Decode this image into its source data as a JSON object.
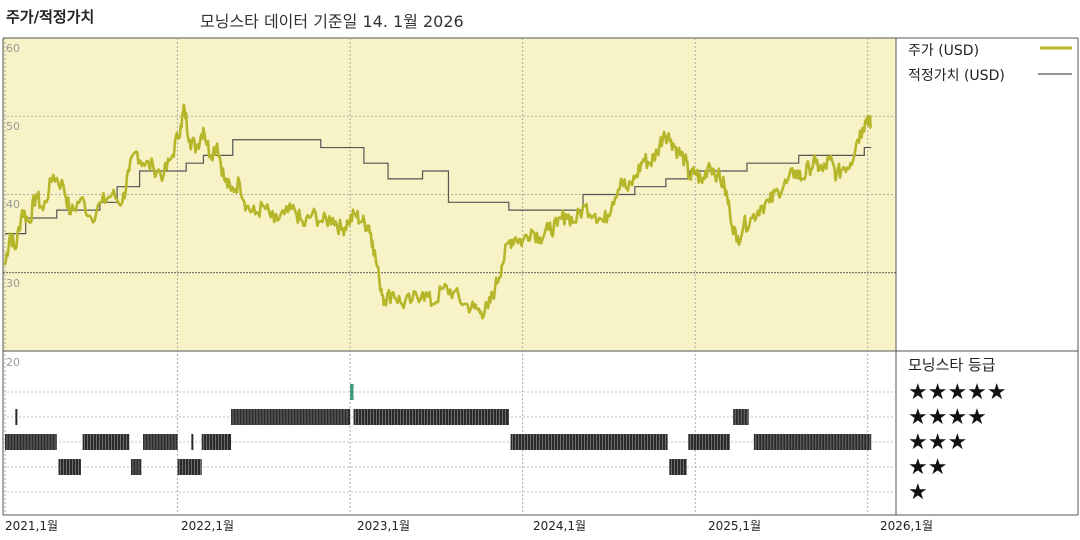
{
  "header": {
    "title": "주가/적정가치",
    "subtitle": "모닝스타 데이터 기준일 14. 1월 2026"
  },
  "colors": {
    "price": "#b6b62a",
    "fair": "#555555",
    "panel_bg": "#f7f3c7",
    "one_star_bar": "#3d9a72"
  },
  "chart_data": [
    {
      "type": "line",
      "y_ticks": [
        "60",
        "50",
        "40",
        "30"
      ],
      "ylim": [
        20,
        60
      ],
      "xlim": [
        2021.0,
        2026.1
      ],
      "x_tick_labels": [
        "2021,1월",
        "2022,1월",
        "2023,1월",
        "2024,1월",
        "2025,1월",
        "2026,1월"
      ],
      "x_tick_values": [
        2021.0,
        2022.0,
        2023.0,
        2024.0,
        2025.0,
        2026.0
      ],
      "legend": "right",
      "series": [
        {
          "name": "주가 (USD)",
          "style": "solid-thick",
          "points": [
            [
              2021.0,
              31.0
            ],
            [
              2021.03,
              35.0
            ],
            [
              2021.06,
              33.0
            ],
            [
              2021.1,
              38.0
            ],
            [
              2021.14,
              36.5
            ],
            [
              2021.18,
              40.0
            ],
            [
              2021.22,
              38.0
            ],
            [
              2021.28,
              42.5
            ],
            [
              2021.34,
              41.0
            ],
            [
              2021.38,
              37.5
            ],
            [
              2021.44,
              39.5
            ],
            [
              2021.5,
              37.0
            ],
            [
              2021.56,
              39.0
            ],
            [
              2021.62,
              40.0
            ],
            [
              2021.68,
              39.0
            ],
            [
              2021.72,
              43.0
            ],
            [
              2021.76,
              45.5
            ],
            [
              2021.8,
              44.0
            ],
            [
              2021.86,
              43.5
            ],
            [
              2021.92,
              42.5
            ],
            [
              2021.97,
              45.0
            ],
            [
              2022.02,
              49.0
            ],
            [
              2022.04,
              51.0
            ],
            [
              2022.07,
              47.0
            ],
            [
              2022.11,
              46.0
            ],
            [
              2022.15,
              48.5
            ],
            [
              2022.19,
              45.0
            ],
            [
              2022.23,
              46.5
            ],
            [
              2022.27,
              42.0
            ],
            [
              2022.31,
              40.5
            ],
            [
              2022.36,
              41.5
            ],
            [
              2022.4,
              38.5
            ],
            [
              2022.45,
              37.5
            ],
            [
              2022.5,
              38.5
            ],
            [
              2022.56,
              36.5
            ],
            [
              2022.62,
              37.5
            ],
            [
              2022.68,
              38.0
            ],
            [
              2022.73,
              36.0
            ],
            [
              2022.78,
              37.5
            ],
            [
              2022.84,
              36.5
            ],
            [
              2022.9,
              37.0
            ],
            [
              2022.95,
              35.5
            ],
            [
              2022.99,
              36.5
            ],
            [
              2023.03,
              37.5
            ],
            [
              2023.07,
              36.5
            ],
            [
              2023.11,
              36.0
            ],
            [
              2023.13,
              34.0
            ],
            [
              2023.17,
              29.0
            ],
            [
              2023.2,
              26.5
            ],
            [
              2023.25,
              27.5
            ],
            [
              2023.3,
              26.0
            ],
            [
              2023.36,
              26.5
            ],
            [
              2023.42,
              27.5
            ],
            [
              2023.48,
              26.0
            ],
            [
              2023.54,
              28.0
            ],
            [
              2023.6,
              27.5
            ],
            [
              2023.66,
              26.0
            ],
            [
              2023.72,
              25.5
            ],
            [
              2023.76,
              25.0
            ],
            [
              2023.8,
              25.5
            ],
            [
              2023.84,
              28.0
            ],
            [
              2023.88,
              31.0
            ],
            [
              2023.92,
              34.0
            ],
            [
              2023.96,
              34.5
            ],
            [
              2024.0,
              34.0
            ],
            [
              2024.05,
              35.5
            ],
            [
              2024.1,
              34.5
            ],
            [
              2024.15,
              35.5
            ],
            [
              2024.2,
              36.0
            ],
            [
              2024.25,
              37.5
            ],
            [
              2024.3,
              36.5
            ],
            [
              2024.36,
              38.5
            ],
            [
              2024.42,
              37.5
            ],
            [
              2024.47,
              36.5
            ],
            [
              2024.52,
              39.0
            ],
            [
              2024.57,
              42.0
            ],
            [
              2024.61,
              40.5
            ],
            [
              2024.66,
              42.5
            ],
            [
              2024.7,
              44.5
            ],
            [
              2024.74,
              44.0
            ],
            [
              2024.78,
              45.5
            ],
            [
              2024.82,
              48.0
            ],
            [
              2024.86,
              47.0
            ],
            [
              2024.9,
              45.5
            ],
            [
              2024.94,
              44.5
            ],
            [
              2024.97,
              42.0
            ],
            [
              2025.0,
              43.0
            ],
            [
              2025.04,
              41.5
            ],
            [
              2025.08,
              44.0
            ],
            [
              2025.13,
              42.5
            ],
            [
              2025.17,
              41.0
            ],
            [
              2025.2,
              38.0
            ],
            [
              2025.24,
              34.0
            ],
            [
              2025.28,
              36.0
            ],
            [
              2025.33,
              37.0
            ],
            [
              2025.38,
              38.5
            ],
            [
              2025.43,
              39.0
            ],
            [
              2025.48,
              40.5
            ],
            [
              2025.53,
              41.5
            ],
            [
              2025.58,
              43.0
            ],
            [
              2025.62,
              42.0
            ],
            [
              2025.66,
              43.5
            ],
            [
              2025.7,
              44.0
            ],
            [
              2025.74,
              43.0
            ],
            [
              2025.78,
              44.5
            ],
            [
              2025.82,
              42.5
            ],
            [
              2025.86,
              43.5
            ],
            [
              2025.9,
              44.0
            ],
            [
              2025.94,
              47.0
            ],
            [
              2025.97,
              48.5
            ],
            [
              2026.0,
              50.0
            ],
            [
              2026.02,
              48.5
            ]
          ]
        },
        {
          "name": "적정가치 (USD)",
          "style": "step-thin",
          "points": [
            [
              2021.0,
              35.0
            ],
            [
              2021.12,
              37.0
            ],
            [
              2021.3,
              38.0
            ],
            [
              2021.55,
              39.0
            ],
            [
              2021.65,
              41.0
            ],
            [
              2021.78,
              43.0
            ],
            [
              2022.05,
              44.0
            ],
            [
              2022.15,
              45.0
            ],
            [
              2022.32,
              47.0
            ],
            [
              2022.65,
              47.0
            ],
            [
              2022.83,
              46.0
            ],
            [
              2023.08,
              44.0
            ],
            [
              2023.22,
              42.0
            ],
            [
              2023.42,
              43.0
            ],
            [
              2023.57,
              39.0
            ],
            [
              2023.92,
              38.0
            ],
            [
              2024.35,
              40.0
            ],
            [
              2024.65,
              41.0
            ],
            [
              2024.83,
              42.0
            ],
            [
              2024.97,
              43.0
            ],
            [
              2025.3,
              44.0
            ],
            [
              2025.6,
              45.0
            ],
            [
              2025.98,
              46.0
            ]
          ]
        }
      ]
    },
    {
      "type": "bar",
      "title": "모닝스타 등급",
      "y_tick": "20",
      "star_levels": [
        "★★★★★",
        "★★★★",
        "★★★",
        "★★",
        "★"
      ],
      "segments": [
        {
          "stars": 4,
          "start": 2021.06,
          "end": 2021.07
        },
        {
          "stars": 3,
          "start": 2021.0,
          "end": 2021.3
        },
        {
          "stars": 2,
          "start": 2021.31,
          "end": 2021.44
        },
        {
          "stars": 3,
          "start": 2021.45,
          "end": 2021.72
        },
        {
          "stars": 2,
          "start": 2021.73,
          "end": 2021.79
        },
        {
          "stars": 3,
          "start": 2021.8,
          "end": 2022.0
        },
        {
          "stars": 3,
          "start": 2022.08,
          "end": 2022.09
        },
        {
          "stars": 2,
          "start": 2022.0,
          "end": 2022.14
        },
        {
          "stars": 3,
          "start": 2022.14,
          "end": 2022.31
        },
        {
          "stars": 4,
          "start": 2022.31,
          "end": 2023.0
        },
        {
          "stars": 5,
          "start": 2023.0,
          "end": 2023.02
        },
        {
          "stars": 4,
          "start": 2023.02,
          "end": 2023.92
        },
        {
          "stars": 3,
          "start": 2023.93,
          "end": 2024.84
        },
        {
          "stars": 2,
          "start": 2024.85,
          "end": 2024.95
        },
        {
          "stars": 3,
          "start": 2024.96,
          "end": 2025.2
        },
        {
          "stars": 4,
          "start": 2025.22,
          "end": 2025.31
        },
        {
          "stars": 3,
          "start": 2025.34,
          "end": 2026.02
        }
      ]
    }
  ]
}
